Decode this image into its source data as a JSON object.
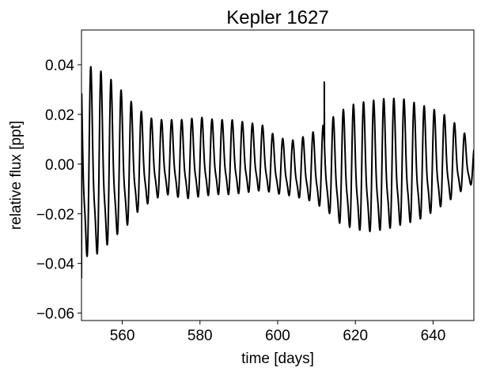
{
  "chart_data": {
    "type": "line",
    "title": "Kepler 1627",
    "xlabel": "time [days]",
    "ylabel": "relative flux [ppt]",
    "xlim": [
      549.5,
      650.5
    ],
    "ylim": [
      -0.063,
      0.054
    ],
    "xticks": [
      560,
      580,
      600,
      620,
      640
    ],
    "xtick_labels": [
      "560",
      "580",
      "600",
      "620",
      "640"
    ],
    "yticks": [
      -0.06,
      -0.04,
      -0.02,
      0.0,
      0.02,
      0.04
    ],
    "ytick_labels": [
      "−0.06",
      "−0.04",
      "−0.02",
      "0.00",
      "0.02",
      "0.04"
    ],
    "grid": false,
    "line_color": "#000000",
    "series": [
      {
        "period": 2.6,
        "phase_ref": 552.0,
        "envelope": {
          "x": [
            549.5,
            552,
            555,
            558,
            561,
            564,
            568,
            572,
            576,
            580,
            584,
            588,
            592,
            596,
            600,
            604,
            608,
            612,
            616,
            620,
            624,
            628,
            632,
            636,
            640,
            644,
            648,
            650.5
          ],
          "amplitude": [
            0.04,
            0.041,
            0.038,
            0.033,
            0.028,
            0.022,
            0.017,
            0.016,
            0.017,
            0.017,
            0.016,
            0.016,
            0.015,
            0.014,
            0.012,
            0.012,
            0.014,
            0.018,
            0.024,
            0.027,
            0.028,
            0.028,
            0.027,
            0.025,
            0.022,
            0.018,
            0.012,
            0.008
          ],
          "offset": [
            -0.003,
            -0.004,
            -0.003,
            -0.002,
            -0.002,
            -0.001,
            0.0,
            0.001,
            0.0,
            0.001,
            0.001,
            0.001,
            0.001,
            0.001,
            -0.002,
            -0.003,
            -0.003,
            -0.003,
            -0.004,
            -0.004,
            -0.004,
            -0.003,
            -0.002,
            -0.002,
            -0.001,
            0.0,
            0.0,
            -0.001
          ]
        },
        "spikes": [
          {
            "x": 612.0,
            "y": 0.033
          },
          {
            "x": 612.2,
            "y": 0.0
          }
        ],
        "start_value": -0.046
      }
    ]
  }
}
